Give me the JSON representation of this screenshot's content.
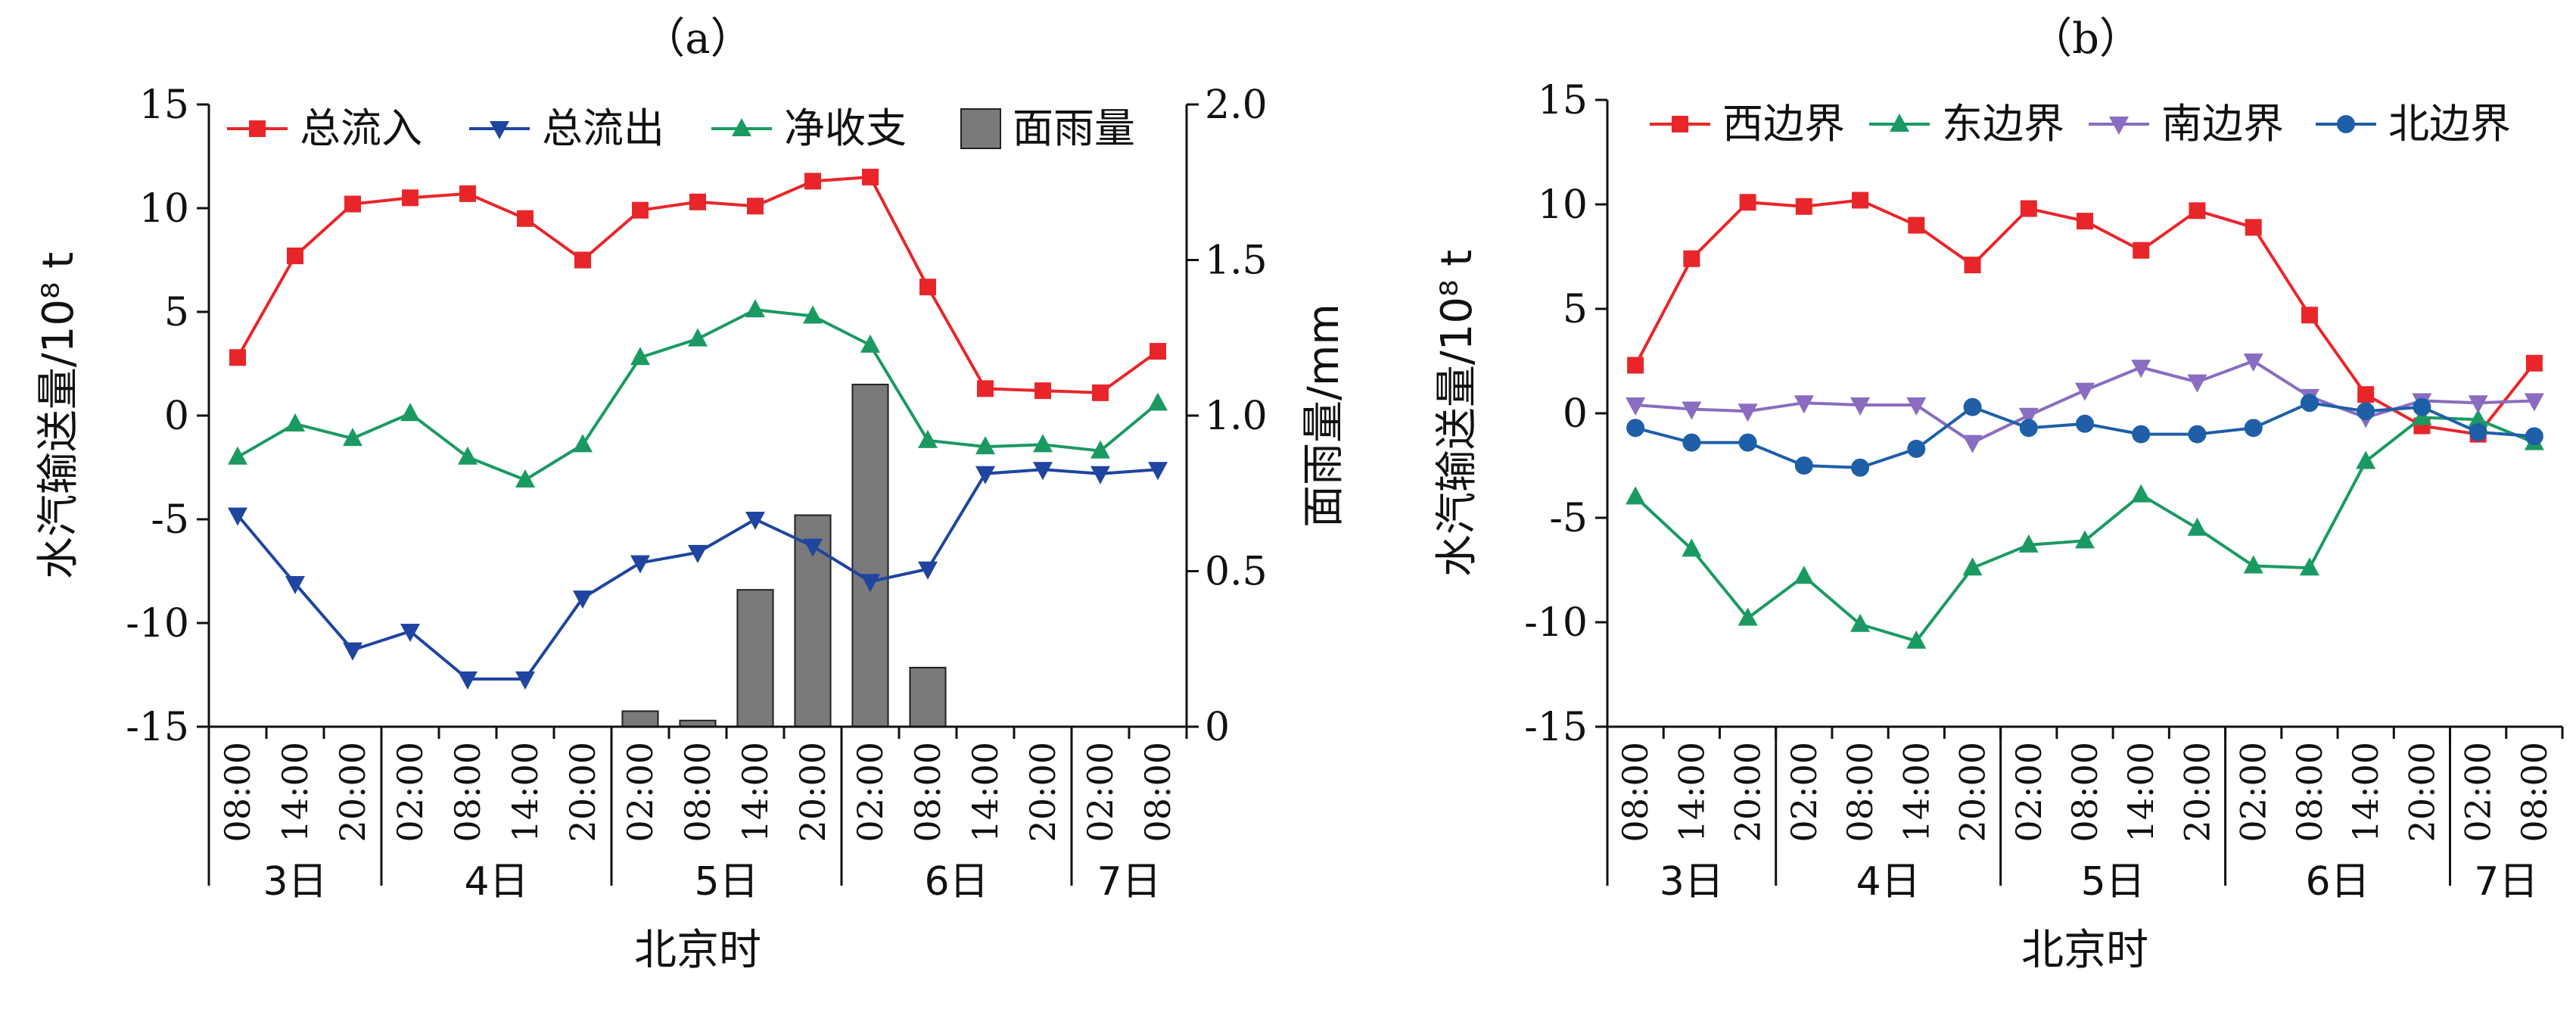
{
  "chart_data": [
    {
      "panel_label": "（a）",
      "type": "line",
      "ylabel": "水汽输送量/10⁸ t",
      "ylabel2": "面雨量/mm",
      "xlabel": "北京时",
      "ylim": [
        -15,
        15
      ],
      "yticks": [
        -15,
        -10,
        -5,
        0,
        5,
        10,
        15
      ],
      "ylim2": [
        0,
        2.0
      ],
      "yticks2": [
        "0",
        "0.5",
        "1.0",
        "1.5",
        "2.0"
      ],
      "x": [
        "08:00",
        "14:00",
        "20:00",
        "02:00",
        "08:00",
        "14:00",
        "20:00",
        "02:00",
        "08:00",
        "14:00",
        "20:00",
        "02:00",
        "08:00",
        "14:00",
        "20:00",
        "02:00",
        "08:00"
      ],
      "day_groups": [
        {
          "label": "3日",
          "count": 3
        },
        {
          "label": "4日",
          "count": 4
        },
        {
          "label": "5日",
          "count": 4
        },
        {
          "label": "6日",
          "count": 4
        },
        {
          "label": "7日",
          "count": 2
        }
      ],
      "legend_position": "top",
      "series": [
        {
          "name": "总流入",
          "color": "#e8262a",
          "marker": "square",
          "values": [
            2.8,
            7.7,
            10.2,
            10.5,
            10.7,
            9.5,
            7.5,
            9.9,
            10.3,
            10.1,
            11.3,
            11.5,
            6.2,
            1.3,
            1.2,
            1.1,
            3.1
          ]
        },
        {
          "name": "总流出",
          "color": "#1f45a0",
          "marker": "triangle-down",
          "values": [
            -4.8,
            -8.1,
            -11.3,
            -10.4,
            -12.7,
            -12.7,
            -8.8,
            -7.1,
            -6.6,
            -5.0,
            -6.3,
            -8.0,
            -7.4,
            -2.8,
            -2.6,
            -2.8,
            -2.6
          ]
        },
        {
          "name": "净收支",
          "color": "#1a9a62",
          "marker": "triangle-up",
          "values": [
            -2.0,
            -0.4,
            -1.1,
            0.1,
            -2.0,
            -3.1,
            -1.4,
            2.8,
            3.7,
            5.1,
            4.8,
            3.4,
            -1.2,
            -1.5,
            -1.4,
            -1.7,
            0.6
          ]
        },
        {
          "name": "面雨量",
          "type": "bar",
          "color": "#7a7a7a",
          "axis": "right",
          "values": [
            null,
            null,
            null,
            null,
            null,
            null,
            null,
            0.05,
            0.02,
            0.44,
            0.68,
            1.1,
            0.19,
            null,
            null,
            null,
            null
          ]
        }
      ]
    },
    {
      "panel_label": "（b）",
      "type": "line",
      "ylabel": "水汽输送量/10⁸ t",
      "xlabel": "北京时",
      "ylim": [
        -15,
        15
      ],
      "yticks": [
        -15,
        -10,
        -5,
        0,
        5,
        10,
        15
      ],
      "x": [
        "08:00",
        "14:00",
        "20:00",
        "02:00",
        "08:00",
        "14:00",
        "20:00",
        "02:00",
        "08:00",
        "14:00",
        "20:00",
        "02:00",
        "08:00",
        "14:00",
        "20:00",
        "02:00",
        "08:00"
      ],
      "day_groups": [
        {
          "label": "3日",
          "count": 3
        },
        {
          "label": "4日",
          "count": 4
        },
        {
          "label": "5日",
          "count": 4
        },
        {
          "label": "6日",
          "count": 4
        },
        {
          "label": "7日",
          "count": 2
        }
      ],
      "legend_position": "top",
      "series": [
        {
          "name": "西边界",
          "color": "#e8262a",
          "marker": "square",
          "values": [
            2.3,
            7.4,
            10.1,
            9.9,
            10.2,
            9.0,
            7.1,
            9.8,
            9.2,
            7.8,
            9.7,
            8.9,
            4.7,
            0.9,
            -0.6,
            -1.0,
            2.4
          ]
        },
        {
          "name": "东边界",
          "color": "#1a9a62",
          "marker": "triangle-up",
          "values": [
            -4.0,
            -6.5,
            -9.8,
            -7.8,
            -10.1,
            -10.9,
            -7.4,
            -6.3,
            -6.1,
            -3.9,
            -5.5,
            -7.3,
            -7.4,
            -2.3,
            -0.2,
            -0.3,
            -1.4
          ]
        },
        {
          "name": "南边界",
          "color": "#8a6cc0",
          "marker": "triangle-down",
          "values": [
            0.4,
            0.2,
            0.1,
            0.5,
            0.4,
            0.4,
            -1.4,
            -0.1,
            1.1,
            2.2,
            1.5,
            2.5,
            0.8,
            -0.2,
            0.6,
            0.5,
            0.6
          ]
        },
        {
          "name": "北边界",
          "color": "#1e5fa8",
          "marker": "circle",
          "values": [
            -0.7,
            -1.4,
            -1.4,
            -2.5,
            -2.6,
            -1.7,
            0.3,
            -0.7,
            -0.5,
            -1.0,
            -1.0,
            -0.7,
            0.5,
            0.1,
            0.3,
            -0.9,
            -1.1
          ]
        }
      ]
    }
  ]
}
